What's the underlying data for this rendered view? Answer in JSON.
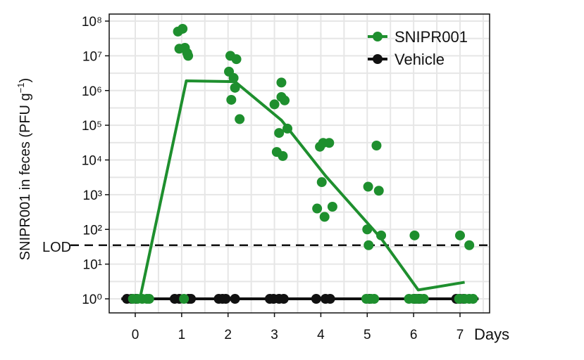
{
  "chart_data": {
    "type": "scatter",
    "ylabel": {
      "prefix": "SNIPR001 in feces (PFU g",
      "sup": "−1",
      "suffix": ")"
    },
    "x_axis_label": "Days",
    "x_ticks": [
      0,
      1,
      2,
      3,
      4,
      5,
      6,
      7
    ],
    "y_scale": "log10",
    "y_ticks": [
      "10⁰",
      "10¹",
      "10²",
      "10³",
      "10⁴",
      "10⁵",
      "10⁶",
      "10⁷",
      "10⁸"
    ],
    "ylim": [
      1,
      100000000
    ],
    "xlim": [
      -0.55,
      7.6
    ],
    "grid": true,
    "lod": {
      "label": "LOD",
      "value": 35
    },
    "legend": {
      "position": "top-right",
      "entries": [
        "SNIPR001",
        "Vehicle"
      ]
    },
    "series": [
      {
        "name": "SNIPR001",
        "color": "#1e8f2e",
        "points": [
          [
            -0.05,
            1
          ],
          [
            0.05,
            1
          ],
          [
            0.15,
            1
          ],
          [
            0.25,
            1
          ],
          [
            0.3,
            1
          ],
          [
            0.92,
            50000000
          ],
          [
            1.02,
            60000000
          ],
          [
            0.95,
            16000000
          ],
          [
            1.07,
            17000000
          ],
          [
            1.12,
            12000000
          ],
          [
            1.14,
            10000000
          ],
          [
            1.05,
            1
          ],
          [
            2.05,
            10000000
          ],
          [
            2.18,
            8000000
          ],
          [
            2.02,
            3500000
          ],
          [
            2.12,
            2300000
          ],
          [
            2.15,
            1200000
          ],
          [
            2.07,
            540000
          ],
          [
            2.25,
            150000
          ],
          [
            3.0,
            400000
          ],
          [
            3.15,
            1700000
          ],
          [
            3.15,
            650000
          ],
          [
            3.22,
            520000
          ],
          [
            3.1,
            60000
          ],
          [
            3.28,
            80000
          ],
          [
            3.05,
            17000
          ],
          [
            3.18,
            13000
          ],
          [
            3.98,
            24000
          ],
          [
            4.05,
            31000
          ],
          [
            4.18,
            31000
          ],
          [
            4.02,
            2300
          ],
          [
            4.25,
            450
          ],
          [
            3.92,
            400
          ],
          [
            4.08,
            230
          ],
          [
            5.2,
            26000
          ],
          [
            5.02,
            1700
          ],
          [
            5.25,
            1300
          ],
          [
            5.0,
            100
          ],
          [
            5.3,
            67
          ],
          [
            5.03,
            35
          ],
          [
            4.98,
            1
          ],
          [
            5.08,
            1
          ],
          [
            5.15,
            1
          ],
          [
            6.02,
            67
          ],
          [
            5.9,
            1
          ],
          [
            6.0,
            1
          ],
          [
            6.07,
            1
          ],
          [
            6.15,
            1
          ],
          [
            6.22,
            1
          ],
          [
            7.0,
            67
          ],
          [
            7.2,
            35
          ],
          [
            6.98,
            1
          ],
          [
            7.1,
            1
          ],
          [
            7.2,
            1
          ],
          [
            7.28,
            1
          ]
        ],
        "mean_line": [
          [
            0.1,
            1
          ],
          [
            1.1,
            1900000
          ],
          [
            2.15,
            1800000
          ],
          [
            3.15,
            140000
          ],
          [
            4.1,
            3500
          ],
          [
            5.3,
            55
          ],
          [
            6.1,
            1.8
          ],
          [
            7.1,
            3
          ]
        ]
      },
      {
        "name": "Vehicle",
        "color": "#111111",
        "points": [
          [
            -0.18,
            1
          ],
          [
            -0.08,
            1
          ],
          [
            0.02,
            1
          ],
          [
            0.85,
            1
          ],
          [
            0.95,
            1
          ],
          [
            1.15,
            1
          ],
          [
            1.2,
            1
          ],
          [
            1.8,
            1
          ],
          [
            1.88,
            1
          ],
          [
            1.95,
            1
          ],
          [
            2.15,
            1
          ],
          [
            2.9,
            1
          ],
          [
            2.98,
            1
          ],
          [
            3.1,
            1
          ],
          [
            3.2,
            1
          ],
          [
            3.9,
            1
          ],
          [
            4.1,
            1
          ],
          [
            4.2,
            1
          ],
          [
            5.05,
            1
          ],
          [
            6.02,
            1
          ],
          [
            6.12,
            1
          ],
          [
            6.92,
            1
          ],
          [
            7.0,
            1
          ],
          [
            7.08,
            1
          ]
        ],
        "mean_line": [
          [
            -0.3,
            1
          ],
          [
            7.4,
            1
          ]
        ]
      }
    ]
  }
}
